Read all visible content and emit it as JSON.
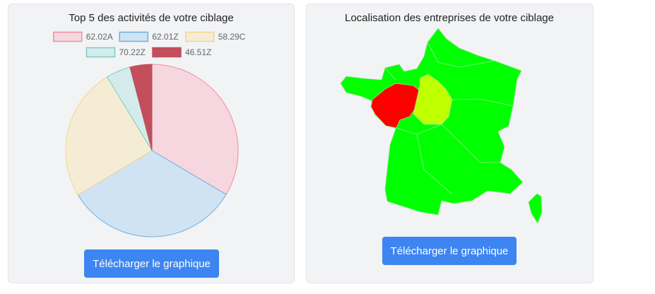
{
  "chart_data": {
    "type": "pie",
    "title": "Top 5 des activités de votre ciblage",
    "categories": [
      "62.02A",
      "62.01Z",
      "58.29C",
      "70.22Z",
      "46.51Z"
    ],
    "values": [
      33.5,
      32.9,
      24.9,
      4.6,
      4.1
    ],
    "colors": [
      "#f7d7df",
      "#cfe3f3",
      "#f5ecd6",
      "#d3eceb",
      "#c24f5b"
    ],
    "border_colors": [
      "#f28ba2",
      "#6db0e2",
      "#f5d68a",
      "#7fcbc4",
      "#c24f5b"
    ],
    "legend": "top"
  },
  "pie_button": "Télécharger le graphique",
  "map_card": {
    "title": "Localisation des entreprises de votre ciblage",
    "button": "Télécharger le graphique"
  }
}
